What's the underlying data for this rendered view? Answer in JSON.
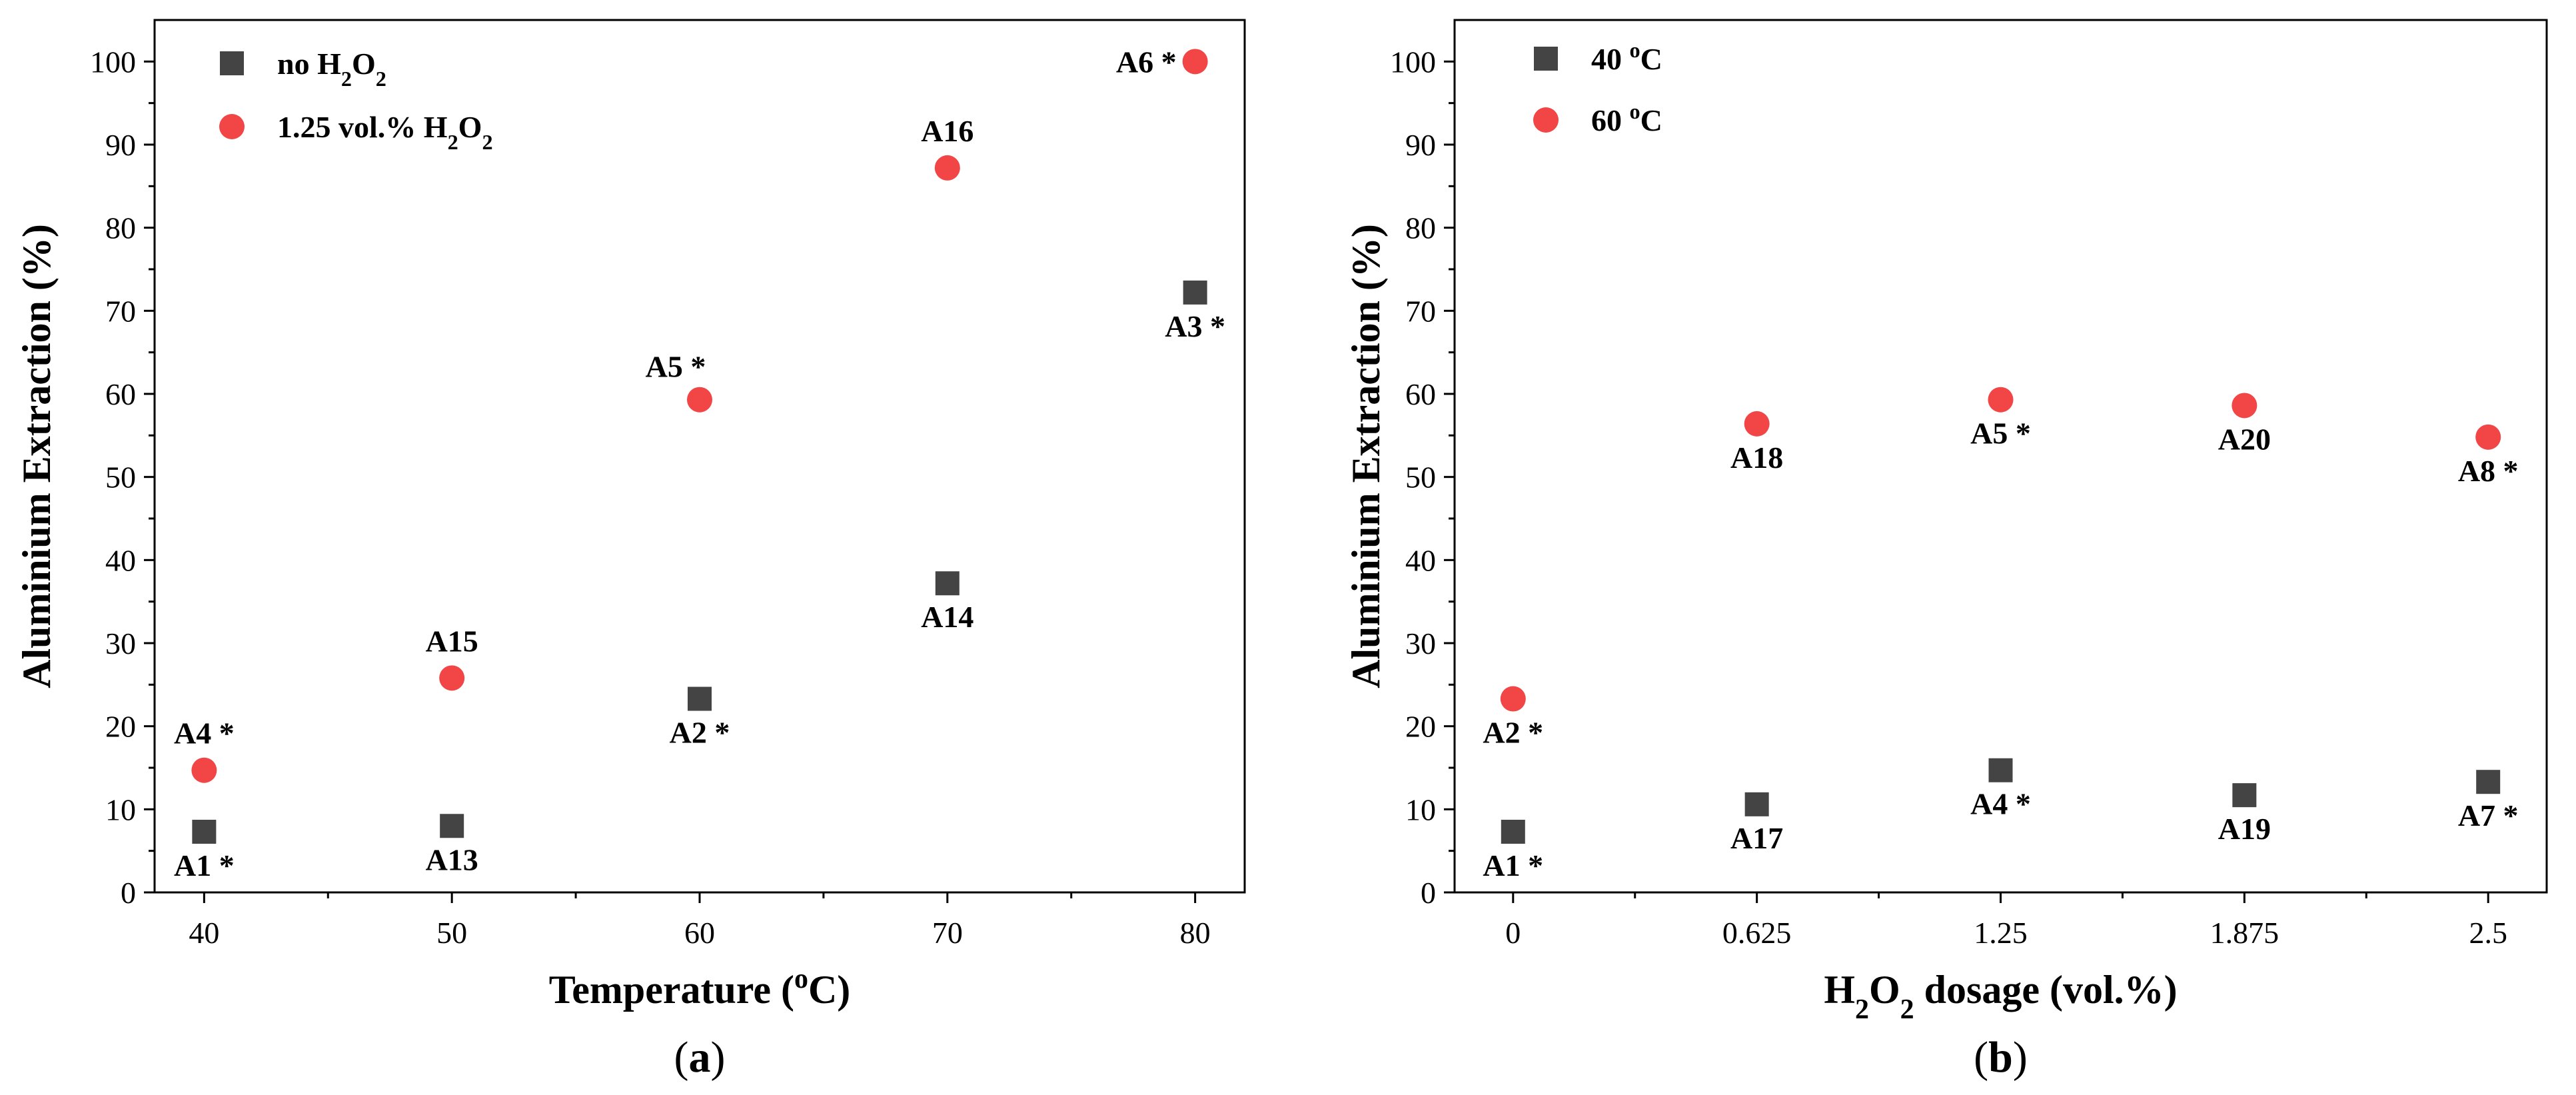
{
  "colors": {
    "square": "#444444",
    "circle": "#f24545",
    "axis": "#000000"
  },
  "chart_data": [
    {
      "type": "scatter",
      "panel_label": "a",
      "xlabel": "Temperature (",
      "xlabel_super": "o",
      "xlabel_tail": "C)",
      "ylabel": "Aluminium Extraction (%)",
      "xlim": [
        38,
        82
      ],
      "ylim": [
        0,
        105
      ],
      "xticks": [
        40,
        50,
        60,
        70,
        80
      ],
      "xtick_labels": [
        "40",
        "50",
        "60",
        "70",
        "80"
      ],
      "yticks": [
        0,
        10,
        20,
        30,
        40,
        50,
        60,
        70,
        80,
        90,
        100
      ],
      "ytick_labels": [
        "0",
        "10",
        "20",
        "30",
        "40",
        "50",
        "60",
        "70",
        "80",
        "90",
        "100"
      ],
      "series": [
        {
          "name": "no H2O2",
          "legend_parts": [
            "no H",
            "2",
            "O",
            "2"
          ],
          "marker": "square",
          "points": [
            {
              "x": 40,
              "y": 7.3,
              "label": "A1 *",
              "pos": "below"
            },
            {
              "x": 50,
              "y": 8.0,
              "label": "A13",
              "pos": "below"
            },
            {
              "x": 60,
              "y": 23.3,
              "label": "A2 *",
              "pos": "below"
            },
            {
              "x": 70,
              "y": 37.2,
              "label": "A14",
              "pos": "below"
            },
            {
              "x": 80,
              "y": 72.2,
              "label": "A3 *",
              "pos": "below"
            }
          ]
        },
        {
          "name": "1.25 vol.% H2O2",
          "legend_parts": [
            "1.25 vol.% H",
            "2",
            "O",
            "2"
          ],
          "marker": "circle",
          "points": [
            {
              "x": 40,
              "y": 14.7,
              "label": "A4 *",
              "pos": "above"
            },
            {
              "x": 50,
              "y": 25.8,
              "label": "A15",
              "pos": "above"
            },
            {
              "x": 60,
              "y": 59.3,
              "label": "A5 *",
              "pos": "above-left"
            },
            {
              "x": 70,
              "y": 87.2,
              "label": "A16",
              "pos": "above"
            },
            {
              "x": 80,
              "y": 100.0,
              "label": "A6 *",
              "pos": "left"
            }
          ]
        }
      ]
    },
    {
      "type": "scatter",
      "panel_label": "b",
      "xlabel": "H2O2 dosage (vol.%)",
      "xlabel_parts": [
        "H",
        "2",
        "O",
        "2",
        " dosage (vol.%)"
      ],
      "ylabel": "Aluminium Extraction (%)",
      "xlim": [
        -0.15,
        2.65
      ],
      "ylim": [
        0,
        105
      ],
      "xticks": [
        0,
        0.625,
        1.25,
        1.875,
        2.5
      ],
      "xtick_labels": [
        "0",
        "0.625",
        "1.25",
        "1.875",
        "2.5"
      ],
      "yticks": [
        0,
        10,
        20,
        30,
        40,
        50,
        60,
        70,
        80,
        90,
        100
      ],
      "ytick_labels": [
        "0",
        "10",
        "20",
        "30",
        "40",
        "50",
        "60",
        "70",
        "80",
        "90",
        "100"
      ],
      "series": [
        {
          "name": "40 oC",
          "legend_parts": [
            "40 ",
            "o",
            "C"
          ],
          "marker": "square",
          "points": [
            {
              "x": 0,
              "y": 7.3,
              "label": "A1 *",
              "pos": "below"
            },
            {
              "x": 0.625,
              "y": 10.6,
              "label": "A17",
              "pos": "below"
            },
            {
              "x": 1.25,
              "y": 14.7,
              "label": "A4 *",
              "pos": "below"
            },
            {
              "x": 1.875,
              "y": 11.7,
              "label": "A19",
              "pos": "below"
            },
            {
              "x": 2.5,
              "y": 13.3,
              "label": "A7 *",
              "pos": "below"
            }
          ]
        },
        {
          "name": "60 oC",
          "legend_parts": [
            "60 ",
            "o",
            "C"
          ],
          "marker": "circle",
          "points": [
            {
              "x": 0,
              "y": 23.3,
              "label": "A2 *",
              "pos": "below"
            },
            {
              "x": 0.625,
              "y": 56.4,
              "label": "A18",
              "pos": "below"
            },
            {
              "x": 1.25,
              "y": 59.3,
              "label": "A5 *",
              "pos": "below"
            },
            {
              "x": 1.875,
              "y": 58.6,
              "label": "A20",
              "pos": "below"
            },
            {
              "x": 2.5,
              "y": 54.8,
              "label": "A8 *",
              "pos": "below"
            }
          ]
        }
      ]
    }
  ]
}
